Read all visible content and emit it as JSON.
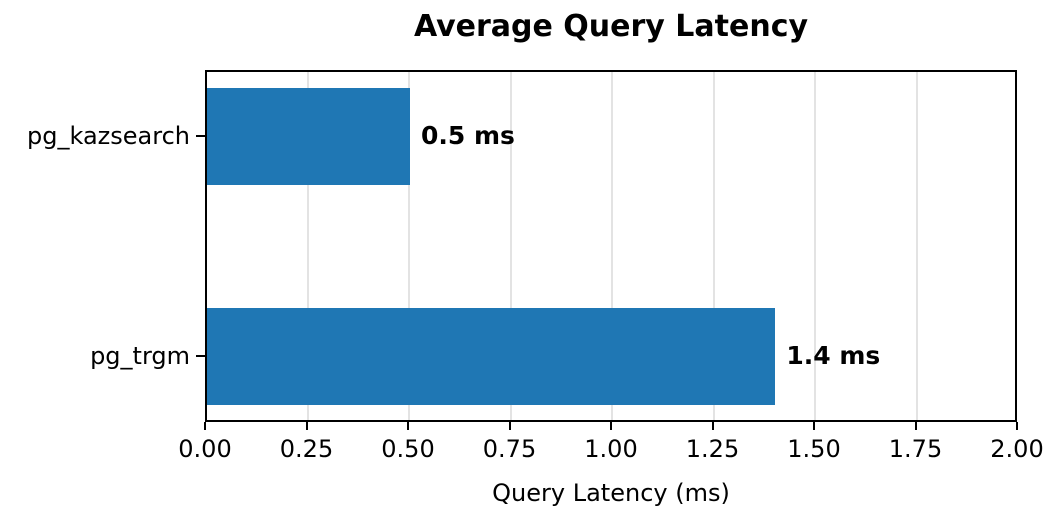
{
  "chart_data": {
    "type": "bar",
    "orientation": "horizontal",
    "title": "Average Query Latency",
    "xlabel": "Query Latency (ms)",
    "ylabel": "",
    "categories": [
      "pg_kazsearch",
      "pg_trgm"
    ],
    "values": [
      0.5,
      1.4
    ],
    "bar_labels": [
      "0.5 ms",
      "1.4 ms"
    ],
    "xlim": [
      0,
      2
    ],
    "xticks": [
      0,
      0.25,
      0.5,
      0.75,
      1,
      1.25,
      1.5,
      1.75,
      2
    ],
    "xtick_labels": [
      "0.00",
      "0.25",
      "0.50",
      "0.75",
      "1.00",
      "1.25",
      "1.50",
      "1.75",
      "2.00"
    ],
    "grid": "vertical",
    "legend": "none",
    "bar_color": "#1f77b4",
    "grid_color": "#e3e3e3",
    "spine_color": "#000000",
    "text_color": "#000000",
    "background_color": "#ffffff"
  }
}
